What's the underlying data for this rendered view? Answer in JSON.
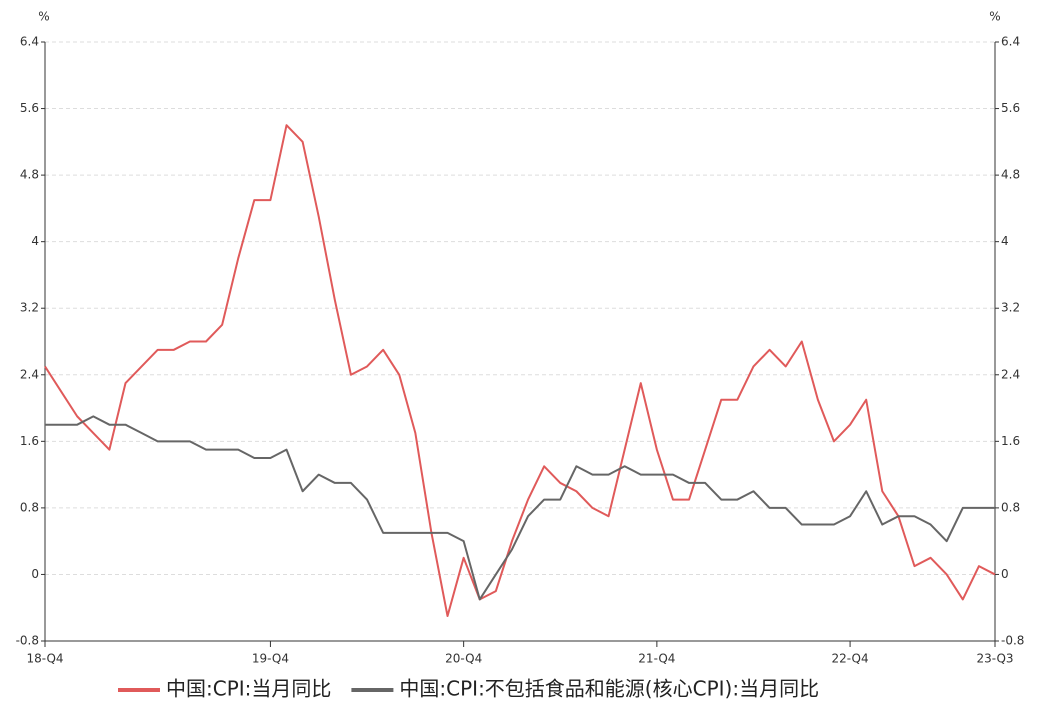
{
  "chart_data": {
    "type": "line",
    "y_unit": "%",
    "y2_unit": "%",
    "categories": [
      "18-Q4",
      null,
      null,
      null,
      null,
      null,
      null,
      null,
      null,
      null,
      null,
      null,
      null,
      null,
      "19-Q4",
      null,
      null,
      null,
      null,
      null,
      null,
      null,
      null,
      null,
      null,
      null,
      "20-Q4",
      null,
      null,
      null,
      null,
      null,
      null,
      null,
      null,
      null,
      null,
      null,
      "21-Q4",
      null,
      null,
      null,
      null,
      null,
      null,
      null,
      null,
      null,
      null,
      null,
      "22-Q4",
      null,
      null,
      null,
      null,
      null,
      null,
      null,
      null,
      "23-Q3"
    ],
    "series": [
      {
        "name": "中国:CPI:当月同比",
        "color": "#e05a5a",
        "values": [
          2.5,
          2.2,
          1.9,
          1.7,
          1.5,
          2.3,
          2.5,
          2.7,
          2.7,
          2.8,
          2.8,
          3.0,
          3.8,
          4.5,
          4.5,
          5.4,
          5.2,
          4.3,
          3.3,
          2.4,
          2.5,
          2.7,
          2.4,
          1.7,
          0.5,
          -0.5,
          0.2,
          -0.3,
          -0.2,
          0.4,
          0.9,
          1.3,
          1.1,
          1.0,
          0.8,
          0.7,
          1.5,
          2.3,
          1.5,
          0.9,
          0.9,
          1.5,
          2.1,
          2.1,
          2.5,
          2.7,
          2.5,
          2.8,
          2.1,
          1.6,
          1.8,
          2.1,
          1.0,
          0.7,
          0.1,
          0.2,
          0.0,
          -0.3,
          0.1,
          0.0
        ]
      },
      {
        "name": "中国:CPI:不包括食品和能源(核心CPI):当月同比",
        "color": "#666666",
        "values": [
          1.8,
          1.8,
          1.8,
          1.9,
          1.8,
          1.8,
          1.7,
          1.6,
          1.6,
          1.6,
          1.5,
          1.5,
          1.5,
          1.4,
          1.4,
          1.5,
          1.0,
          1.2,
          1.1,
          1.1,
          0.9,
          0.5,
          0.5,
          0.5,
          0.5,
          0.5,
          0.4,
          -0.3,
          0.0,
          0.3,
          0.7,
          0.9,
          0.9,
          1.3,
          1.2,
          1.2,
          1.3,
          1.2,
          1.2,
          1.2,
          1.1,
          1.1,
          0.9,
          0.9,
          1.0,
          0.8,
          0.8,
          0.6,
          0.6,
          0.6,
          0.7,
          1.0,
          0.6,
          0.7,
          0.7,
          0.6,
          0.4,
          0.8,
          0.8,
          0.8
        ]
      }
    ],
    "ylim": [
      -0.8,
      6.4
    ],
    "yticks": [
      -0.8,
      0,
      0.8,
      1.6,
      2.4,
      3.2,
      4,
      4.8,
      5.6,
      6.4
    ],
    "y2lim": [
      -0.8,
      6.4
    ],
    "y2ticks": [
      -0.8,
      0,
      0.8,
      1.6,
      2.4,
      3.2,
      4,
      4.8,
      5.6,
      6.4
    ],
    "grid": true
  }
}
